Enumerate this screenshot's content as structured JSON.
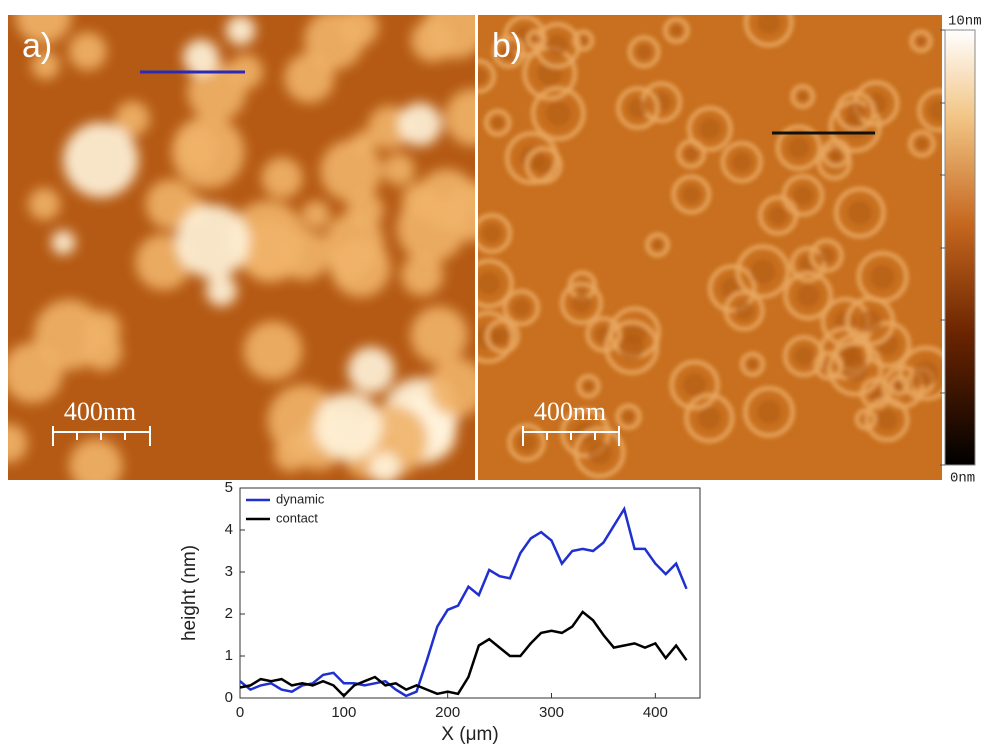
{
  "images": {
    "a_label": "a)",
    "b_label": "b)",
    "a_scale": "400nm",
    "b_scale": "400nm",
    "colorbar_max": "10nm",
    "colorbar_min": "0nm"
  },
  "chart_data": {
    "type": "line",
    "xlabel": "X (μm)",
    "ylabel": "height (nm)",
    "x": [
      0,
      10,
      20,
      30,
      40,
      50,
      60,
      70,
      80,
      90,
      100,
      110,
      120,
      130,
      140,
      150,
      160,
      170,
      180,
      190,
      200,
      210,
      220,
      230,
      240,
      250,
      260,
      270,
      280,
      290,
      300,
      310,
      320,
      330,
      340,
      350,
      360,
      370,
      380,
      390,
      400,
      410,
      420,
      430
    ],
    "series": [
      {
        "name": "dynamic",
        "color": "#1f2fd0",
        "values": [
          0.4,
          0.2,
          0.3,
          0.35,
          0.2,
          0.15,
          0.3,
          0.35,
          0.55,
          0.6,
          0.35,
          0.35,
          0.3,
          0.35,
          0.4,
          0.2,
          0.05,
          0.15,
          0.9,
          1.7,
          2.1,
          2.2,
          2.65,
          2.45,
          3.05,
          2.9,
          2.85,
          3.45,
          3.8,
          3.95,
          3.75,
          3.2,
          3.5,
          3.55,
          3.5,
          3.7,
          4.1,
          4.5,
          3.55,
          3.55,
          3.2,
          2.95,
          3.2,
          2.6
        ]
      },
      {
        "name": "contact",
        "color": "#000000",
        "values": [
          0.25,
          0.3,
          0.45,
          0.4,
          0.45,
          0.3,
          0.35,
          0.3,
          0.4,
          0.3,
          0.05,
          0.3,
          0.4,
          0.5,
          0.3,
          0.35,
          0.2,
          0.3,
          0.2,
          0.1,
          0.15,
          0.1,
          0.5,
          1.25,
          1.4,
          1.2,
          1.0,
          1.0,
          1.3,
          1.55,
          1.6,
          1.55,
          1.7,
          2.05,
          1.85,
          1.5,
          1.2,
          1.25,
          1.3,
          1.2,
          1.3,
          0.95,
          1.25,
          0.9
        ]
      }
    ],
    "xlim": [
      0,
      443
    ],
    "ylim": [
      0,
      5
    ],
    "xticks": [
      0,
      100,
      200,
      300,
      400
    ],
    "yticks": [
      0,
      1,
      2,
      3,
      4,
      5
    ],
    "legend": "upper left"
  }
}
